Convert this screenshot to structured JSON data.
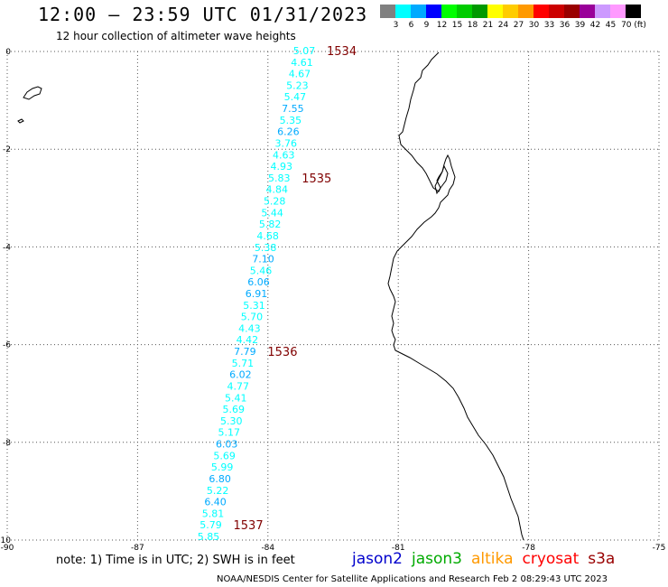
{
  "header": {
    "title": "12:00 – 23:59 UTC 01/31/2023",
    "subtitle": "12 hour collection of altimeter wave heights"
  },
  "colorbar": {
    "colors": [
      "#808080",
      "#00ffff",
      "#00aaff",
      "#0000ff",
      "#00ff00",
      "#00cc00",
      "#009900",
      "#ffff00",
      "#ffcc00",
      "#ff9900",
      "#ff0000",
      "#cc0000",
      "#990000",
      "#990099",
      "#cc99ff",
      "#ff99ff",
      "#000000"
    ],
    "labels": [
      "3",
      "6",
      "9",
      "12",
      "15",
      "18",
      "21",
      "24",
      "27",
      "30",
      "33",
      "36",
      "39",
      "42",
      "45",
      "70 (ft)"
    ]
  },
  "axes": {
    "x_ticks": [
      "-90",
      "-87",
      "-84",
      "-81",
      "-78",
      "-75"
    ],
    "y_ticks": [
      "0",
      "-2",
      "-4",
      "-6",
      "-8",
      "-10"
    ]
  },
  "track": {
    "values": [
      "5.07",
      "4.61",
      "4.67",
      "5.23",
      "5.47",
      "7.55",
      "5.35",
      "6.26",
      "3.76",
      "4.63",
      "4.93",
      "5.83",
      "4.84",
      "5.28",
      "5.44",
      "5.82",
      "4.68",
      "5.38",
      "7.10",
      "5.46",
      "6.06",
      "6.91",
      "5.31",
      "5.70",
      "4.43",
      "4.42",
      "7.79",
      "5.71",
      "6.02",
      "4.77",
      "5.41",
      "5.69",
      "5.30",
      "5.17",
      "6.03",
      "5.69",
      "5.99",
      "6.80",
      "5.22",
      "6.40",
      "5.81",
      "5.79",
      "5.85"
    ],
    "times": [
      "1534",
      "1535",
      "1536",
      "1537"
    ]
  },
  "footer": {
    "note": "note:  1) Time is in UTC; 2) SWH is in feet",
    "satellites": [
      {
        "name": "jason2",
        "color": "#0000cc"
      },
      {
        "name": "jason3",
        "color": "#00aa00"
      },
      {
        "name": "altika",
        "color": "#ff9900"
      },
      {
        "name": "cryosat",
        "color": "#ff0000"
      },
      {
        "name": "s3a",
        "color": "#990000"
      }
    ],
    "credit": "NOAA/NESDIS Center for Satellite Applications and Research    Feb  2 08:29:43 UTC 2023"
  }
}
